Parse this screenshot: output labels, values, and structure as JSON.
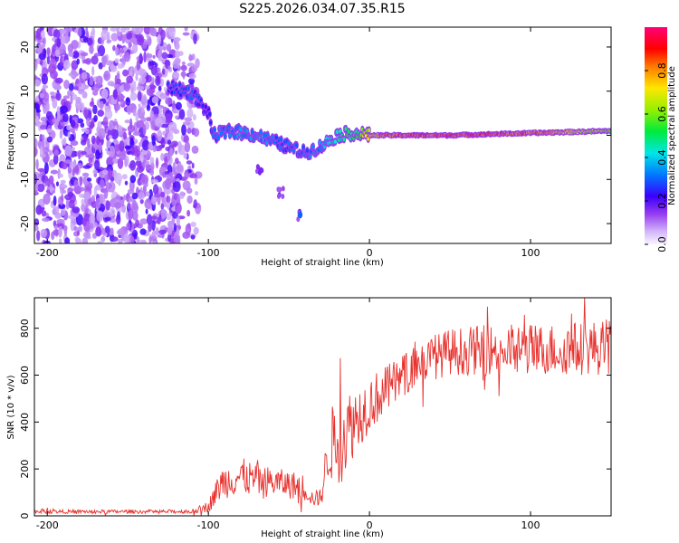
{
  "title": "S225.2026.034.07.35.R15",
  "chart_data": [
    {
      "type": "heatmap",
      "xlabel": "Height of straight line (km)",
      "ylabel": "Frequency (Hz)",
      "xlim": [
        -208,
        150
      ],
      "ylim": [
        -24.5,
        24.5
      ],
      "xticks": [
        -200,
        -100,
        0,
        100
      ],
      "yticks": [
        -20,
        -10,
        0,
        10,
        20
      ],
      "colorbar": {
        "label": "Normalized spectral amplitude",
        "range": [
          0,
          1
        ],
        "ticks": [
          0.0,
          0.2,
          0.4,
          0.6,
          0.8
        ],
        "tick_labels": [
          "0.0",
          "0.2",
          "0.4",
          "0.6",
          "0.8"
        ]
      },
      "features": {
        "noise_region_km": [
          -208,
          -110
        ],
        "carrier_ridge": [
          {
            "x": -125,
            "y": 11,
            "amp": 0.25
          },
          {
            "x": -110,
            "y": 9.5,
            "amp": 0.3
          },
          {
            "x": -100,
            "y": 5,
            "amp": 0.2
          },
          {
            "x": -97,
            "y": 0,
            "amp": 0.3
          },
          {
            "x": -85,
            "y": 1,
            "amp": 0.35
          },
          {
            "x": -70,
            "y": 0,
            "amp": 0.35
          },
          {
            "x": -55,
            "y": -2,
            "amp": 0.3
          },
          {
            "x": -40,
            "y": -4,
            "amp": 0.3
          },
          {
            "x": -30,
            "y": -2.5,
            "amp": 0.35
          },
          {
            "x": -20,
            "y": 0,
            "amp": 0.45
          },
          {
            "x": -10,
            "y": 0.5,
            "amp": 0.5
          },
          {
            "x": 0,
            "y": 0,
            "amp": 0.7
          },
          {
            "x": 10,
            "y": 0,
            "amp": 0.85
          },
          {
            "x": 50,
            "y": 0,
            "amp": 0.9
          },
          {
            "x": 100,
            "y": 0.5,
            "amp": 0.85
          },
          {
            "x": 150,
            "y": 1,
            "amp": 0.6
          }
        ],
        "secondary_branch": [
          {
            "x": -68,
            "y": -8
          },
          {
            "x": -55,
            "y": -13
          },
          {
            "x": -43,
            "y": -18
          }
        ]
      }
    },
    {
      "type": "line",
      "xlabel": "Height of straight line (km)",
      "ylabel": "SNR (10 * v/v)",
      "xlim": [
        -208,
        150
      ],
      "ylim": [
        0,
        930
      ],
      "xticks": [
        -200,
        -100,
        0,
        100
      ],
      "yticks": [
        0,
        200,
        400,
        600,
        800
      ],
      "color": "#e8322e",
      "envelope": [
        {
          "x": -208,
          "mean": 18,
          "amp": 8
        },
        {
          "x": -110,
          "mean": 18,
          "amp": 8
        },
        {
          "x": -100,
          "mean": 40,
          "amp": 25
        },
        {
          "x": -92,
          "mean": 140,
          "amp": 70
        },
        {
          "x": -80,
          "mean": 170,
          "amp": 80
        },
        {
          "x": -70,
          "mean": 150,
          "amp": 70
        },
        {
          "x": -55,
          "mean": 140,
          "amp": 60
        },
        {
          "x": -40,
          "mean": 120,
          "amp": 60
        },
        {
          "x": -35,
          "mean": 70,
          "amp": 30
        },
        {
          "x": -30,
          "mean": 80,
          "amp": 40
        },
        {
          "x": -25,
          "mean": 300,
          "amp": 150
        },
        {
          "x": -18,
          "mean": 330,
          "amp": 200
        },
        {
          "x": -10,
          "mean": 400,
          "amp": 150
        },
        {
          "x": 0,
          "mean": 480,
          "amp": 120
        },
        {
          "x": 15,
          "mean": 560,
          "amp": 100
        },
        {
          "x": 30,
          "mean": 650,
          "amp": 90
        },
        {
          "x": 50,
          "mean": 700,
          "amp": 100
        },
        {
          "x": 80,
          "mean": 710,
          "amp": 110
        },
        {
          "x": 110,
          "mean": 710,
          "amp": 110
        },
        {
          "x": 150,
          "mean": 720,
          "amp": 120
        }
      ]
    }
  ]
}
